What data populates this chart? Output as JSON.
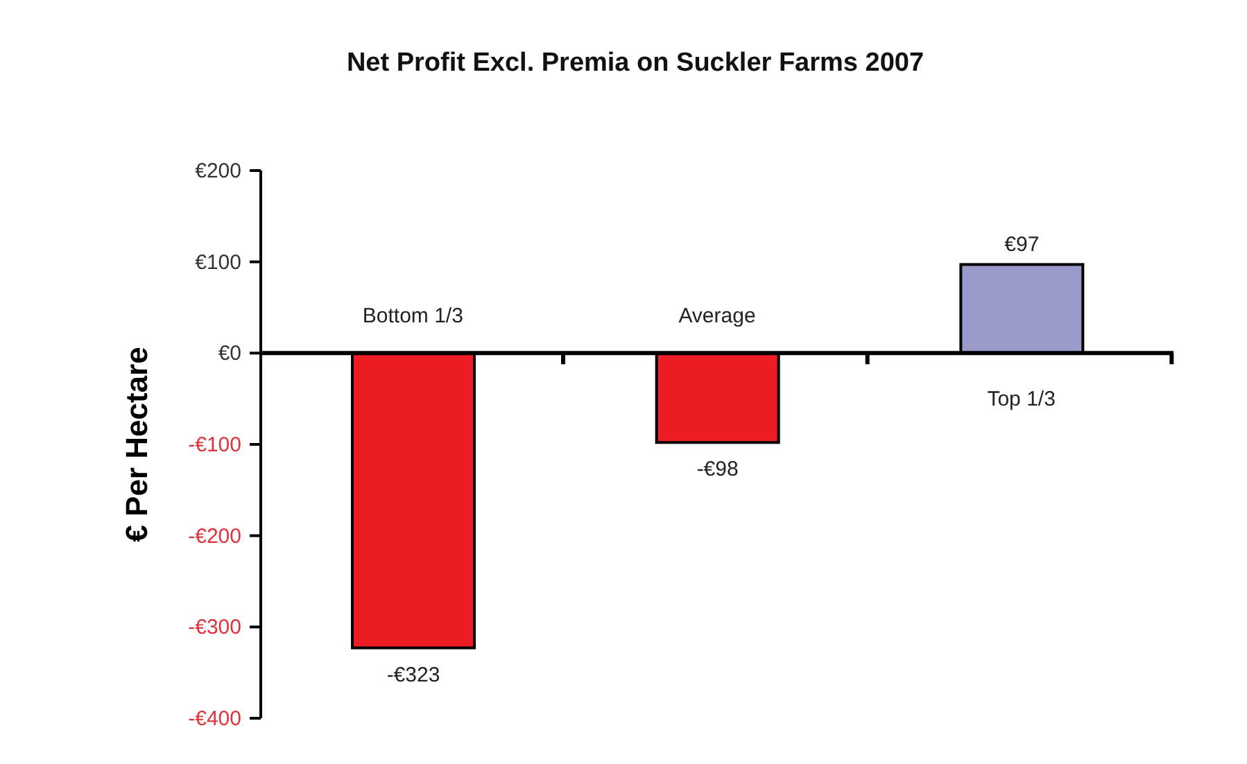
{
  "chart_data": {
    "type": "bar",
    "title": "Net Profit Excl. Premia on Suckler Farms 2007",
    "ylabel": "€ Per Hectare",
    "categories": [
      "Bottom 1/3",
      "Average",
      "Top 1/3"
    ],
    "values": [
      -323,
      -98,
      97
    ],
    "value_labels": [
      "-€323",
      "-€98",
      "€97"
    ],
    "colors": [
      "#ee1c24",
      "#ee1c24",
      "#9999cc"
    ],
    "ylim": [
      -400,
      200
    ],
    "yticks": [
      {
        "value": -400,
        "label": "-€400"
      },
      {
        "value": -300,
        "label": "-€300"
      },
      {
        "value": -200,
        "label": "-€200"
      },
      {
        "value": -100,
        "label": "-€100"
      },
      {
        "value": 0,
        "label": "€0"
      },
      {
        "value": 100,
        "label": "€100"
      },
      {
        "value": 200,
        "label": "€200"
      }
    ],
    "grid": false,
    "legend": false
  }
}
